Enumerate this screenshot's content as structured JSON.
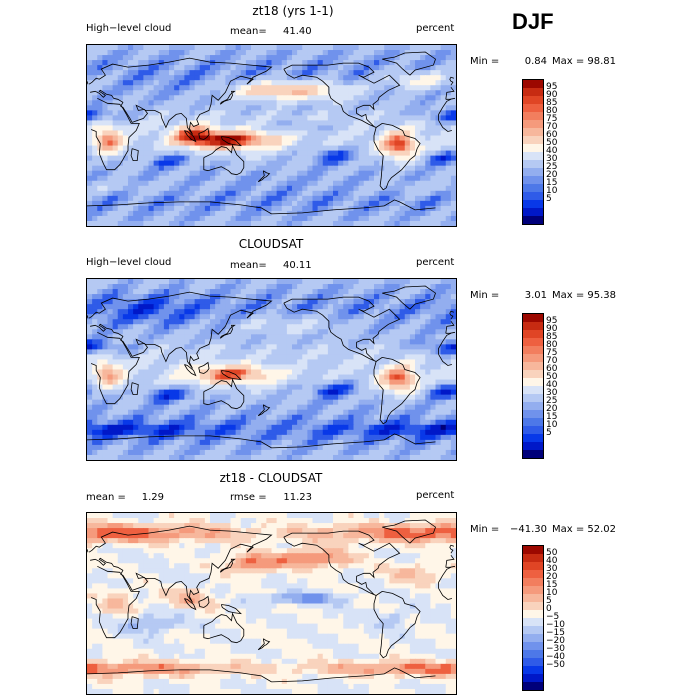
{
  "season": "DJF",
  "colors": {
    "mean_scale": [
      "#00007a",
      "#0018c8",
      "#0838e8",
      "#2f5be8",
      "#4d78e8",
      "#7092ec",
      "#93aeef",
      "#b5c9f3",
      "#d8e3f7",
      "#fff6e8",
      "#f9d3bd",
      "#f7b79c",
      "#f59a7c",
      "#f27e5e",
      "#ee6040",
      "#e04525",
      "#c72b12",
      "#9c0800"
    ],
    "diff_scale": [
      "#00007a",
      "#0018c8",
      "#0838e8",
      "#2f5be8",
      "#4d78e8",
      "#7092ec",
      "#93aeef",
      "#b5c9f3",
      "#d8e3f7",
      "#fff6e8",
      "#f9d3bd",
      "#f7b79c",
      "#f59a7c",
      "#f27e5e",
      "#ee6040",
      "#e04525",
      "#c72b12",
      "#9c0800"
    ]
  },
  "panels": [
    {
      "id": "model",
      "title": "zt18 (yrs 1-1)",
      "variable": "High−level cloud",
      "units": "percent",
      "stat_left_label": "",
      "stat_left_value": "",
      "stat_mid_label": "mean=",
      "stat_mid_value": "41.40",
      "min_label": "Min =",
      "min_value": "0.84",
      "max_label": "Max =",
      "max_value": "98.81",
      "scale": "mean_scale",
      "ticks": [
        "95",
        "90",
        "85",
        "80",
        "75",
        "70",
        "60",
        "50",
        "40",
        "30",
        "25",
        "20",
        "15",
        "10",
        "5"
      ]
    },
    {
      "id": "obs",
      "title": "CLOUDSAT",
      "variable": "High−level cloud",
      "units": "percent",
      "stat_left_label": "",
      "stat_left_value": "",
      "stat_mid_label": "mean=",
      "stat_mid_value": "40.11",
      "min_label": "Min =",
      "min_value": "3.01",
      "max_label": "Max =",
      "max_value": "95.38",
      "scale": "mean_scale",
      "ticks": [
        "95",
        "90",
        "85",
        "80",
        "75",
        "70",
        "60",
        "50",
        "40",
        "30",
        "25",
        "20",
        "15",
        "10",
        "5"
      ]
    },
    {
      "id": "diff",
      "title": "zt18 - CLOUDSAT",
      "variable": "",
      "units": "percent",
      "stat_left_label": "mean =",
      "stat_left_value": "1.29",
      "stat_mid_label": "rmse =",
      "stat_mid_value": "11.23",
      "min_label": "Min =",
      "min_value": "−41.30",
      "max_label": "Max =",
      "max_value": "52.02",
      "scale": "diff_scale",
      "ticks": [
        "50",
        "40",
        "30",
        "20",
        "15",
        "10",
        "5",
        "0",
        "−5",
        "−10",
        "−15",
        "−20",
        "−30",
        "−40",
        "−50"
      ]
    }
  ],
  "chart_data": [
    {
      "type": "heatmap",
      "title": "zt18 (yrs 1-1)",
      "subtitle": "High−level cloud",
      "units": "percent",
      "mean": 41.4,
      "min": 0.84,
      "max": 98.81,
      "levels": [
        5,
        10,
        15,
        20,
        25,
        30,
        40,
        50,
        60,
        70,
        75,
        80,
        85,
        90,
        95
      ],
      "features": [
        {
          "lon": 145,
          "lat": -5,
          "v": 88,
          "rx": 45,
          "ry": 10
        },
        {
          "lon": 105,
          "lat": 0,
          "v": 78,
          "rx": 25,
          "ry": 12
        },
        {
          "lon": -55,
          "lat": -10,
          "v": 85,
          "rx": 20,
          "ry": 15
        },
        {
          "lon": 20,
          "lat": -5,
          "v": 78,
          "rx": 15,
          "ry": 15
        },
        {
          "lon": -150,
          "lat": 8,
          "v": 25,
          "rx": 40,
          "ry": 6
        },
        {
          "lon": 0,
          "lat": 20,
          "v": 15,
          "rx": 40,
          "ry": 8
        },
        {
          "lon": -120,
          "lat": -20,
          "v": 15,
          "rx": 30,
          "ry": 10
        },
        {
          "lon": -10,
          "lat": -22,
          "v": 15,
          "rx": 25,
          "ry": 8
        },
        {
          "lon": 80,
          "lat": -25,
          "v": 18,
          "rx": 30,
          "ry": 8
        },
        {
          "lon": -140,
          "lat": 45,
          "v": 68,
          "rx": 50,
          "ry": 10
        },
        {
          "lon": 170,
          "lat": 45,
          "v": 66,
          "rx": 40,
          "ry": 10
        },
        {
          "lon": -35,
          "lat": 55,
          "v": 64,
          "rx": 40,
          "ry": 10
        },
        {
          "lon": 60,
          "lat": 60,
          "v": 35,
          "rx": 50,
          "ry": 15
        },
        {
          "lon": 0,
          "lat": -52,
          "v": 45,
          "rx": 120,
          "ry": 8
        }
      ]
    },
    {
      "type": "heatmap",
      "title": "CLOUDSAT",
      "subtitle": "High−level cloud",
      "units": "percent",
      "mean": 40.11,
      "min": 3.01,
      "max": 95.38,
      "levels": [
        5,
        10,
        15,
        20,
        25,
        30,
        40,
        50,
        60,
        70,
        75,
        80,
        85,
        90,
        95
      ],
      "features": [
        {
          "lon": 140,
          "lat": -5,
          "v": 80,
          "rx": 45,
          "ry": 10
        },
        {
          "lon": -55,
          "lat": -10,
          "v": 82,
          "rx": 20,
          "ry": 15
        },
        {
          "lon": 20,
          "lat": -5,
          "v": 72,
          "rx": 15,
          "ry": 15
        },
        {
          "lon": -150,
          "lat": 8,
          "v": 30,
          "rx": 40,
          "ry": 6
        },
        {
          "lon": 0,
          "lat": 22,
          "v": 12,
          "rx": 40,
          "ry": 8
        },
        {
          "lon": -120,
          "lat": -20,
          "v": 12,
          "rx": 30,
          "ry": 10
        },
        {
          "lon": -10,
          "lat": -22,
          "v": 12,
          "rx": 25,
          "ry": 8
        },
        {
          "lon": 80,
          "lat": -25,
          "v": 15,
          "rx": 30,
          "ry": 8
        },
        {
          "lon": -140,
          "lat": 45,
          "v": 45,
          "rx": 50,
          "ry": 10
        },
        {
          "lon": 170,
          "lat": 45,
          "v": 45,
          "rx": 40,
          "ry": 10
        },
        {
          "lon": 60,
          "lat": 60,
          "v": 25,
          "rx": 50,
          "ry": 15
        },
        {
          "lon": 0,
          "lat": -60,
          "v": 20,
          "rx": 140,
          "ry": 8
        }
      ]
    },
    {
      "type": "heatmap",
      "title": "zt18 - CLOUDSAT",
      "units": "percent",
      "mean": 1.29,
      "rmse": 11.23,
      "min": -41.3,
      "max": 52.02,
      "levels": [
        -50,
        -40,
        -30,
        -20,
        -15,
        -10,
        -5,
        0,
        5,
        10,
        15,
        20,
        30,
        40,
        50
      ],
      "features": [
        {
          "lon": 0,
          "lat": 70,
          "v": 25,
          "rx": 160,
          "ry": 10
        },
        {
          "lon": 0,
          "lat": -65,
          "v": 22,
          "rx": 160,
          "ry": 8
        },
        {
          "lon": -140,
          "lat": 45,
          "v": 22,
          "rx": 40,
          "ry": 10
        },
        {
          "lon": 160,
          "lat": 40,
          "v": 20,
          "rx": 30,
          "ry": 10
        },
        {
          "lon": -150,
          "lat": 5,
          "v": -18,
          "rx": 40,
          "ry": 6
        },
        {
          "lon": 100,
          "lat": 5,
          "v": 12,
          "rx": 30,
          "ry": 10
        },
        {
          "lon": 30,
          "lat": 0,
          "v": 10,
          "rx": 20,
          "ry": 15
        },
        {
          "lon": -60,
          "lat": -15,
          "v": -8,
          "rx": 20,
          "ry": 10
        },
        {
          "lon": 60,
          "lat": -20,
          "v": -12,
          "rx": 30,
          "ry": 10
        },
        {
          "lon": -40,
          "lat": 30,
          "v": 12,
          "rx": 30,
          "ry": 10
        }
      ]
    }
  ]
}
